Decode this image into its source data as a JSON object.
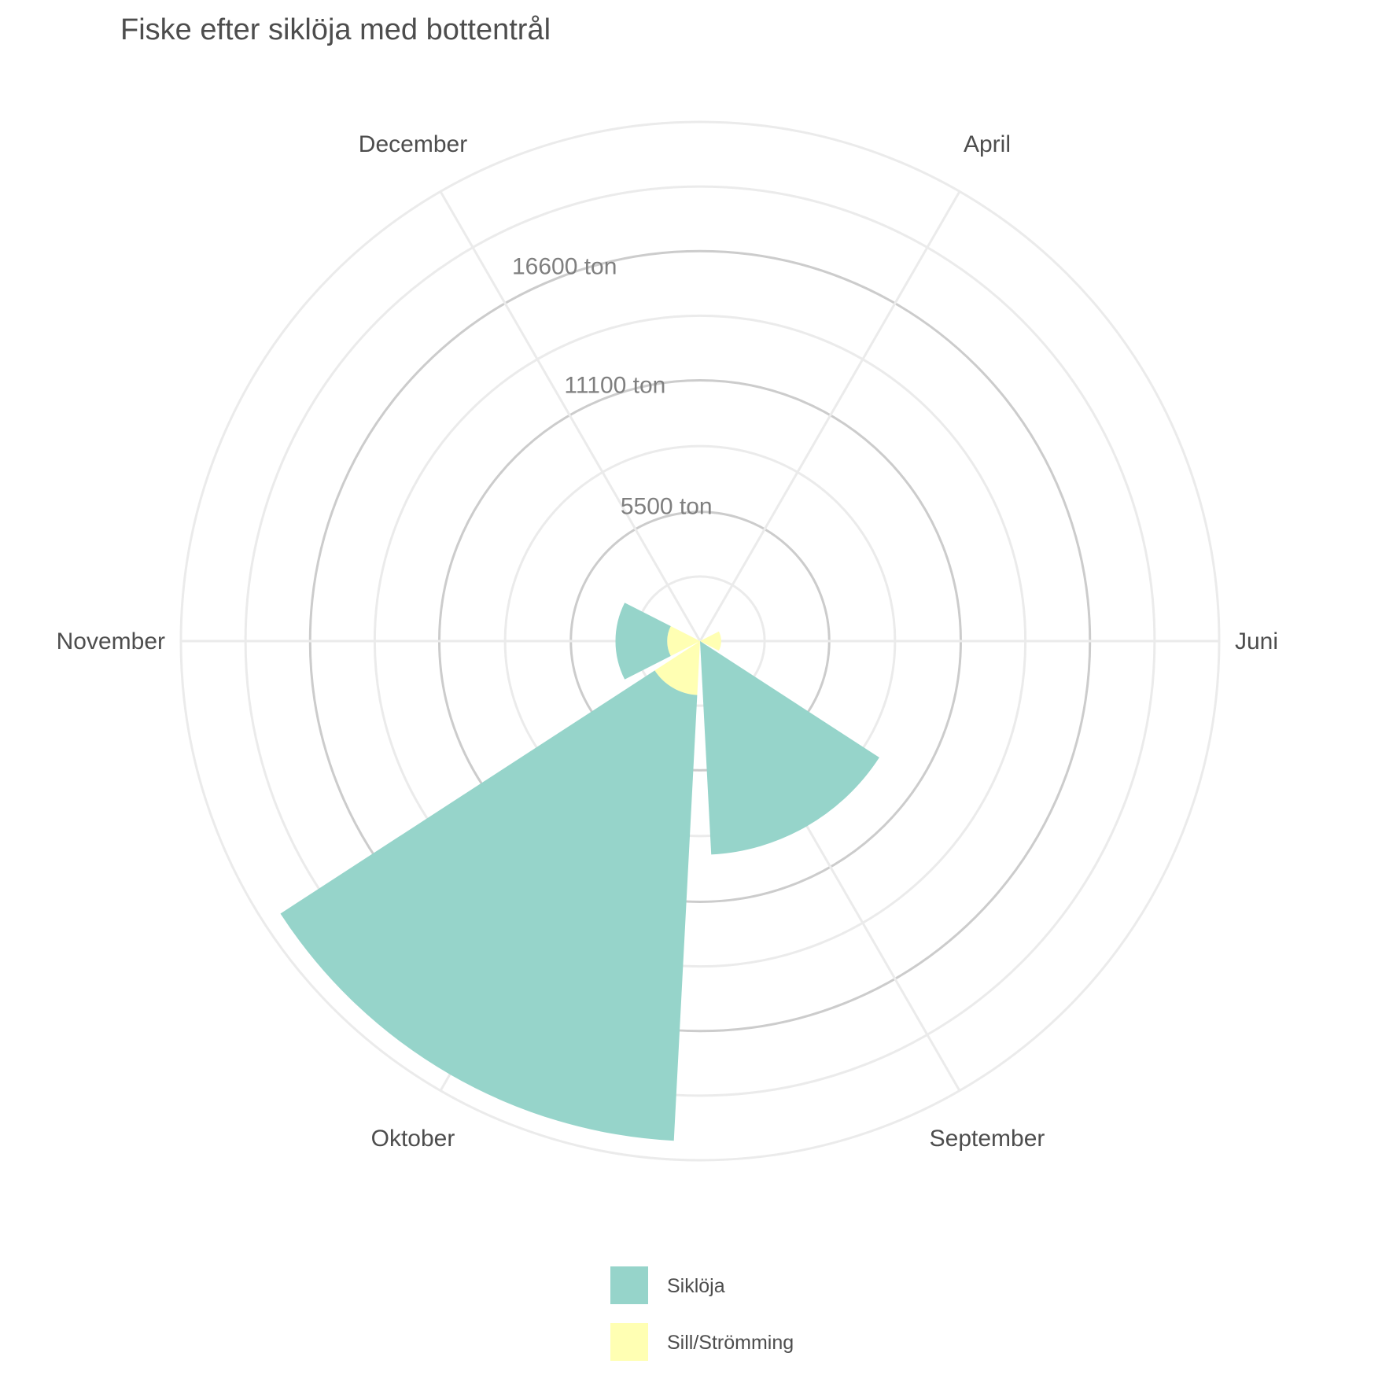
{
  "chart_data": {
    "type": "polar-stacked-bar",
    "title": "Fiske efter siklöja med bottentrål",
    "categories": [
      "April",
      "Juni",
      "September",
      "Oktober",
      "November",
      "December"
    ],
    "series": [
      {
        "name": "Siklöja",
        "values": [
          0,
          0,
          9100,
          19000,
          2200,
          0
        ],
        "color": "#96d4ca"
      },
      {
        "name": "Sill/Strömming",
        "values": [
          0,
          900,
          0,
          2300,
          1400,
          0
        ],
        "color": "#ffffb3"
      }
    ],
    "radial_ticks": [
      {
        "value": 5500,
        "label": "5500 ton"
      },
      {
        "value": 11100,
        "label": "11100 ton"
      },
      {
        "value": 16600,
        "label": "16600 ton"
      }
    ],
    "r_max": 22100,
    "legend_position": "bottom",
    "grid": true
  }
}
